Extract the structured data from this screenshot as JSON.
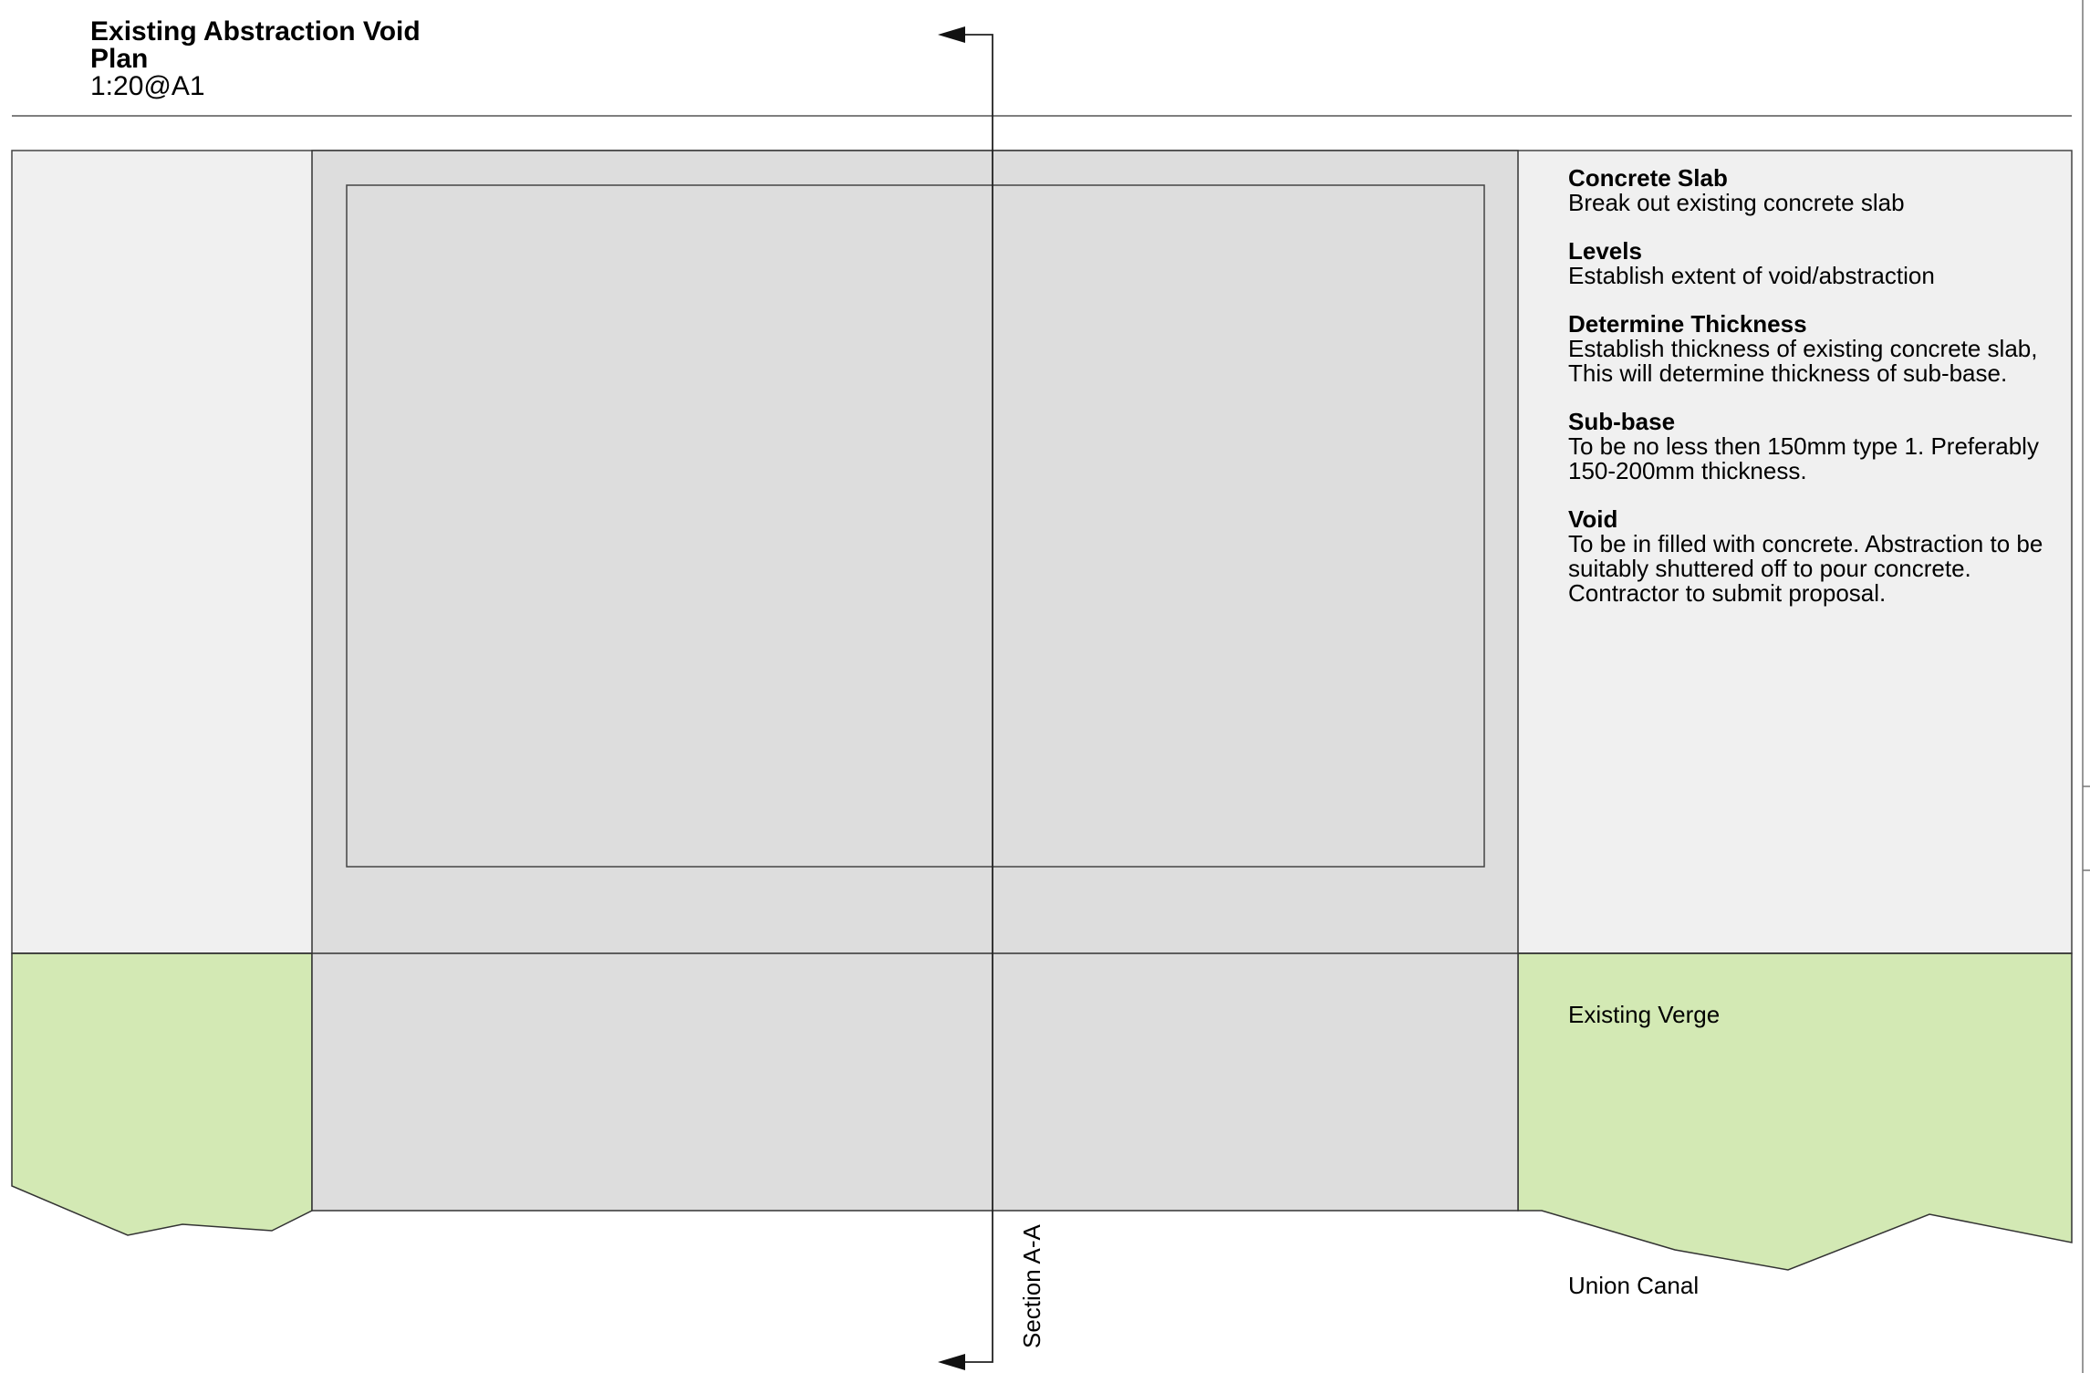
{
  "title": {
    "line1": "Existing Abstraction Void",
    "line2": "Plan",
    "scale": "1:20@A1"
  },
  "notes": [
    {
      "heading": "Concrete Slab",
      "lines": [
        "Break out existing concrete slab"
      ]
    },
    {
      "heading": "Levels",
      "lines": [
        "Establish extent of void/abstraction"
      ]
    },
    {
      "heading": "Determine Thickness",
      "lines": [
        "Establish thickness of existing concrete slab,",
        "This will determine thickness of sub-base."
      ]
    },
    {
      "heading": "Sub-base",
      "lines": [
        "To be no less then 150mm type 1. Preferably",
        "150-200mm thickness."
      ]
    },
    {
      "heading": "Void",
      "lines": [
        "To be in filled with concrete. Abstraction to be",
        "suitably shuttered off to pour concrete.",
        "Contractor to submit proposal."
      ]
    }
  ],
  "labels": {
    "verge": "Existing Verge",
    "canal": "Union Canal",
    "section": "Section A-A"
  },
  "colors": {
    "slab": "#dddddd",
    "surround": "#f0f0f0",
    "verge": "#d3e9b4",
    "line": "#333333"
  }
}
